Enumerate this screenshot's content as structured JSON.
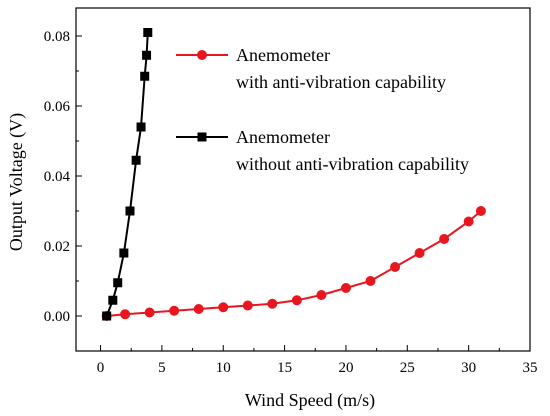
{
  "chart_data": {
    "type": "line",
    "title": "",
    "xlabel": "Wind Speed (m/s)",
    "ylabel": "Output Voltage (V)",
    "xlim": [
      -2,
      35
    ],
    "ylim": [
      -0.01,
      0.088
    ],
    "xticks": [
      0,
      5,
      10,
      15,
      20,
      25,
      30,
      35
    ],
    "xtick_labels": [
      "0",
      "5",
      "10",
      "15",
      "20",
      "25",
      "30",
      "35"
    ],
    "yticks": [
      0.0,
      0.02,
      0.04,
      0.06,
      0.08
    ],
    "ytick_labels": [
      "0.00",
      "0.02",
      "0.04",
      "0.06",
      "0.08"
    ],
    "grid": false,
    "legend_position": "top-right",
    "series": [
      {
        "legend_lines": [
          "Anemometer",
          "with anti-vibration capability"
        ],
        "color": "#e8161f",
        "marker": "circle",
        "x": [
          0.5,
          2,
          4,
          6,
          8,
          10,
          12,
          14,
          16,
          18,
          20,
          22,
          24,
          26,
          28,
          30,
          31
        ],
        "y": [
          0.0,
          0.0005,
          0.001,
          0.0015,
          0.002,
          0.0025,
          0.003,
          0.0035,
          0.0045,
          0.006,
          0.008,
          0.01,
          0.014,
          0.018,
          0.022,
          0.027,
          0.03
        ]
      },
      {
        "legend_lines": [
          "Anemometer",
          "without anti-vibration capability"
        ],
        "color": "#000000",
        "marker": "square",
        "x": [
          0.5,
          1,
          1.4,
          1.9,
          2.4,
          2.9,
          3.3,
          3.6,
          3.75,
          3.85
        ],
        "y": [
          0.0,
          0.0045,
          0.0095,
          0.018,
          0.03,
          0.0445,
          0.054,
          0.0685,
          0.0745,
          0.081
        ]
      }
    ]
  }
}
